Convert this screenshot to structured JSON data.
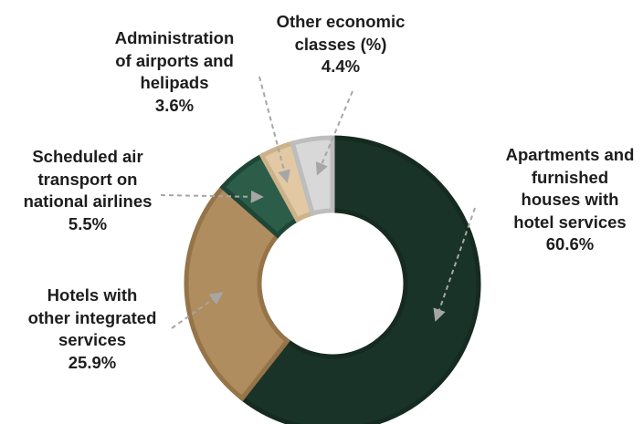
{
  "chart_data": {
    "type": "pie",
    "donut": true,
    "title": "",
    "start_angle_deg": 0,
    "direction": "clockwise",
    "slices": [
      {
        "name": "Apartments and furnished houses with hotel services",
        "lines": [
          "Apartments and",
          "furnished",
          "houses with",
          "hotel services"
        ],
        "label": "60.6%",
        "value": 60.6,
        "color": "#1a3328",
        "stroke": "#152a20"
      },
      {
        "name": "Hotels with other integrated services",
        "lines": [
          "Hotels with",
          "other integrated",
          "services"
        ],
        "label": "25.9%",
        "value": 25.9,
        "color": "#b08d5e",
        "stroke": "#947448"
      },
      {
        "name": "Scheduled air transport on national airlines",
        "lines": [
          "Scheduled air",
          "transport on",
          "national airlines"
        ],
        "label": "5.5%",
        "value": 5.5,
        "color": "#2b5d48",
        "stroke": "#1e4636"
      },
      {
        "name": "Administration of airports and helipads",
        "lines": [
          "Administration",
          "of airports and",
          "helipads"
        ],
        "label": "3.6%",
        "value": 3.6,
        "color": "#e2c9a4",
        "stroke": "#cbb28a"
      },
      {
        "name": "Other economic classes (%)",
        "lines": [
          "Other economic",
          "classes (%)"
        ],
        "label": "4.4%",
        "value": 4.4,
        "color": "#d8d8d8",
        "stroke": "#bdbdbd"
      }
    ]
  }
}
